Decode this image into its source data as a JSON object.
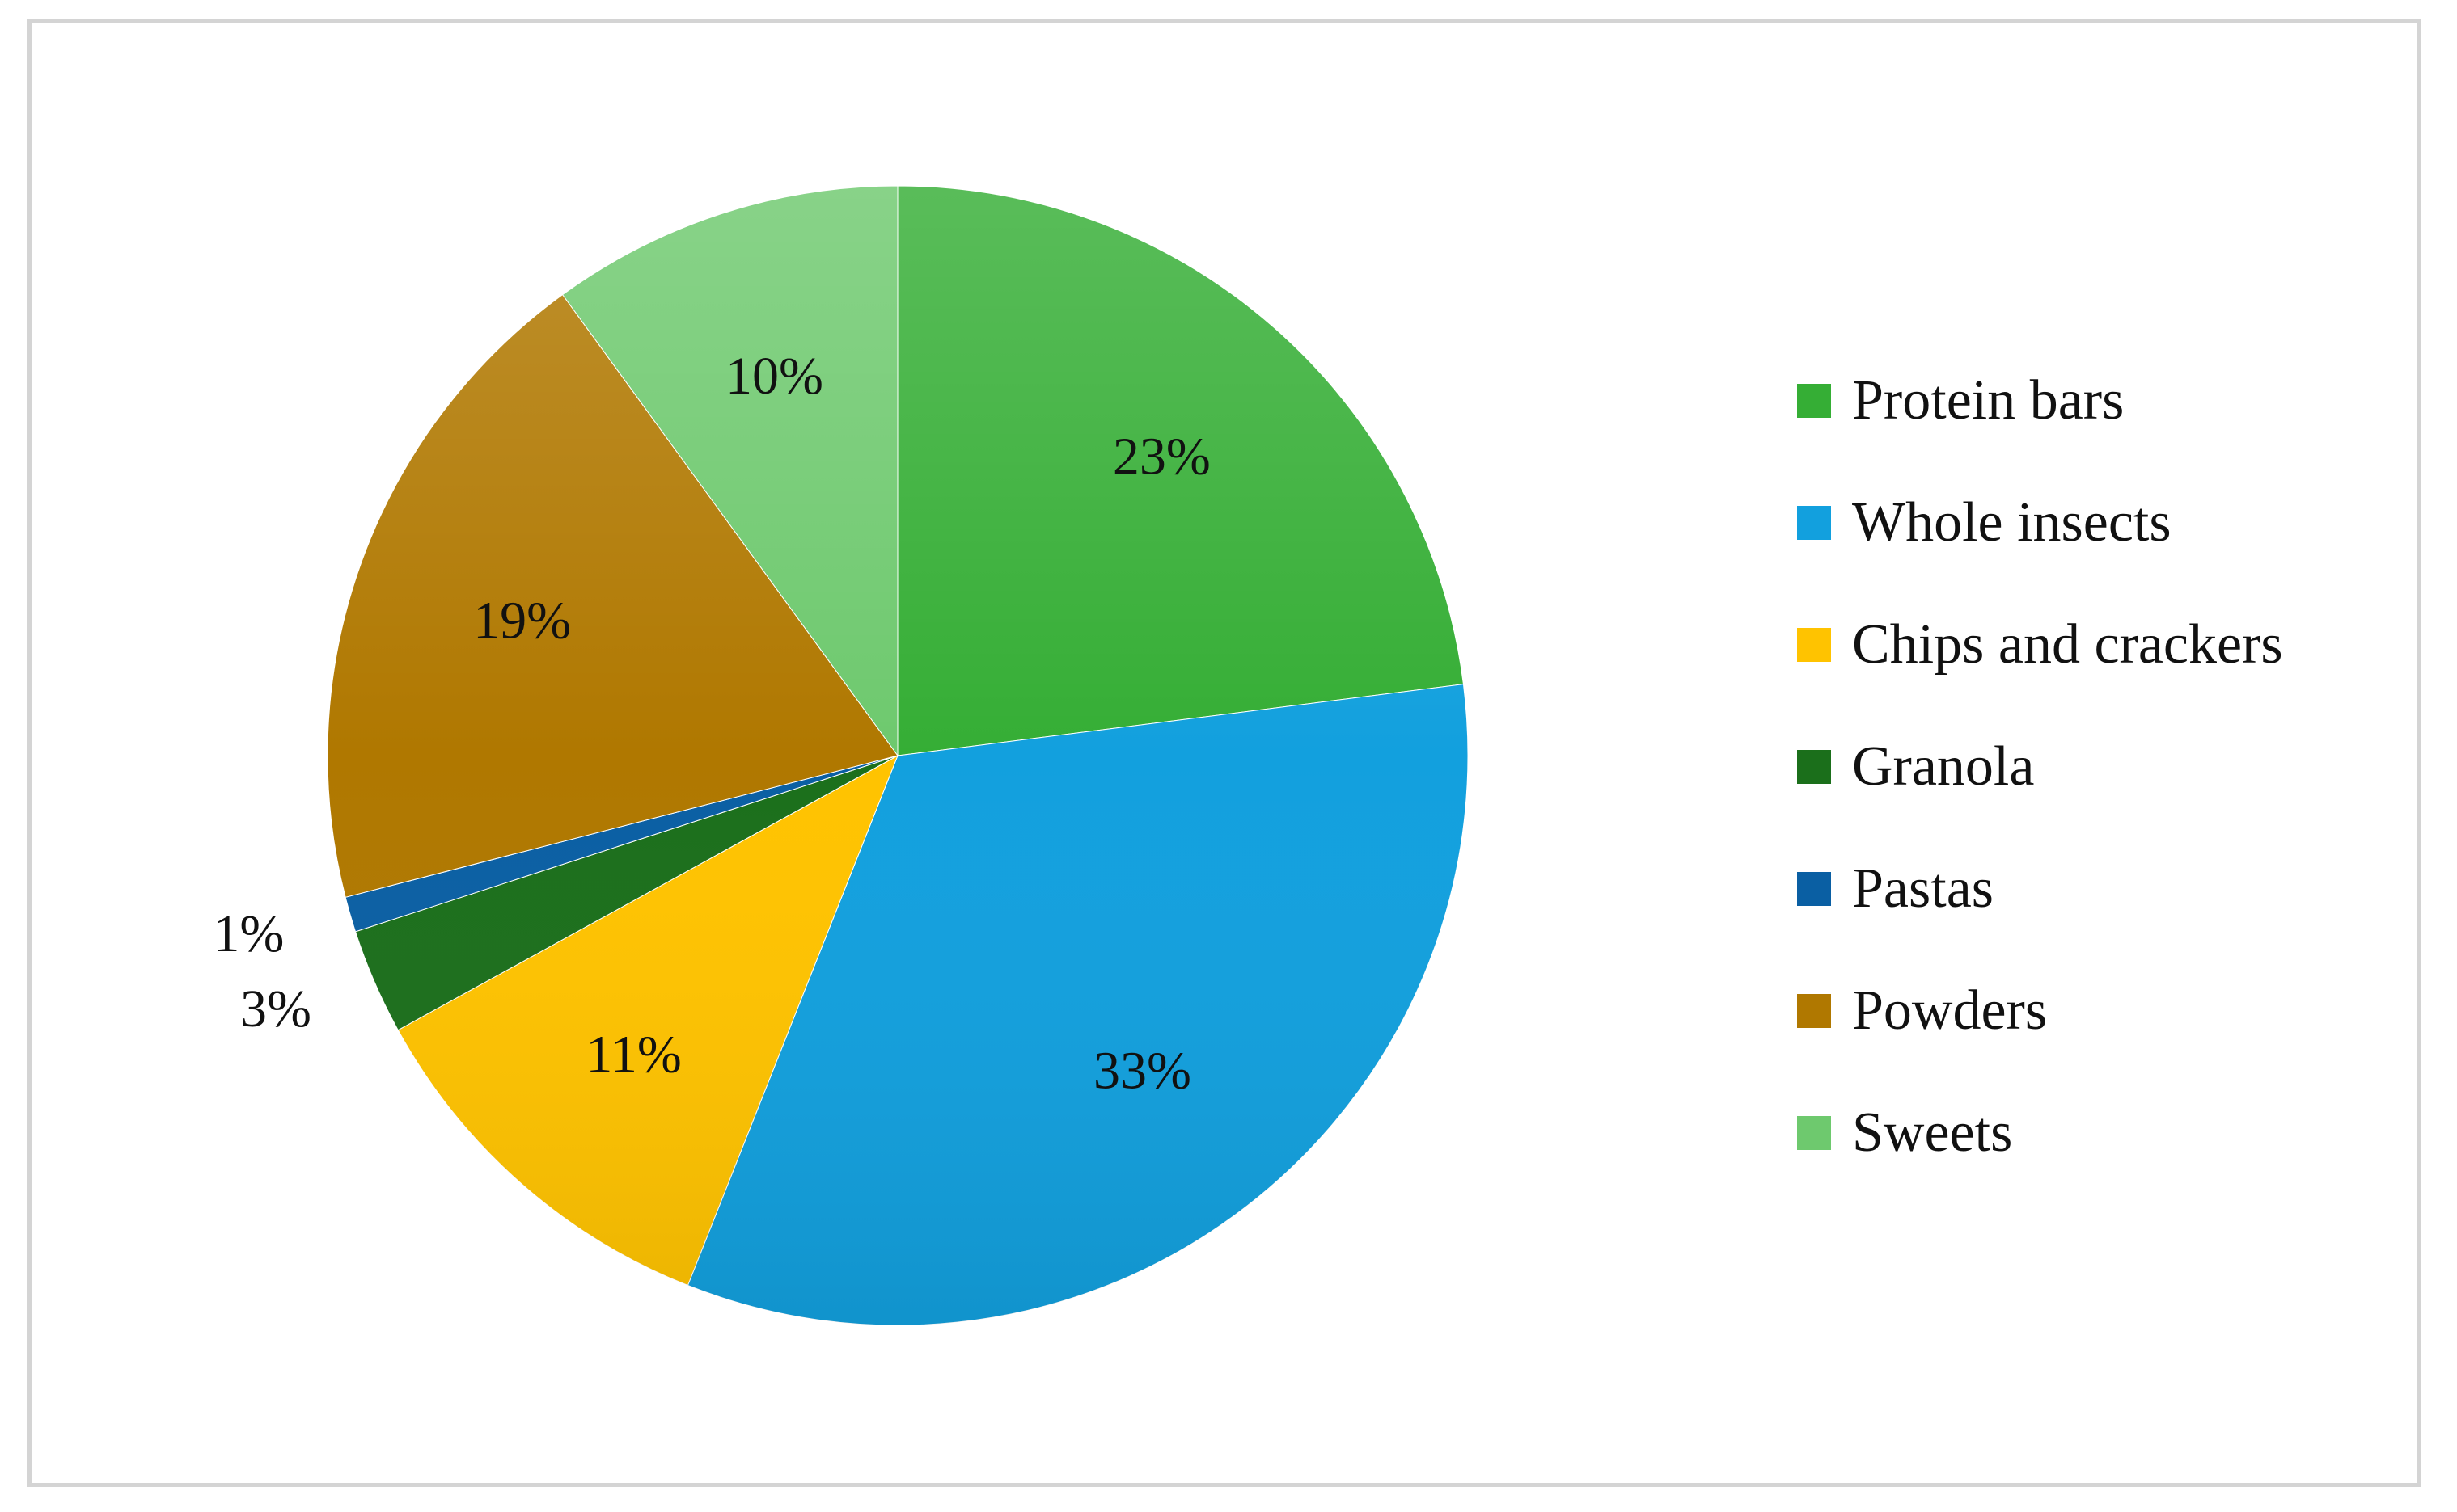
{
  "chart_data": {
    "type": "pie",
    "title": "",
    "slices": [
      {
        "name": "Protein bars",
        "value": 23,
        "label": "23%",
        "color": "#35AE35"
      },
      {
        "name": "Whole insects",
        "value": 33,
        "label": "33%",
        "color": "#12A0DE"
      },
      {
        "name": "Chips and crackers",
        "value": 11,
        "label": "11%",
        "color": "#FFC300"
      },
      {
        "name": "Granola",
        "value": 3,
        "label": "3%",
        "color": "#1B6F1B"
      },
      {
        "name": "Pastas",
        "value": 1,
        "label": "1%",
        "color": "#0A5FA3"
      },
      {
        "name": "Powders",
        "value": 19,
        "label": "19%",
        "color": "#B07800"
      },
      {
        "name": "Sweets",
        "value": 10,
        "label": "10%",
        "color": "#6EC96E"
      }
    ],
    "start": "12 o'clock",
    "direction": "clockwise",
    "legend_position": "right",
    "value_format": "percent"
  }
}
